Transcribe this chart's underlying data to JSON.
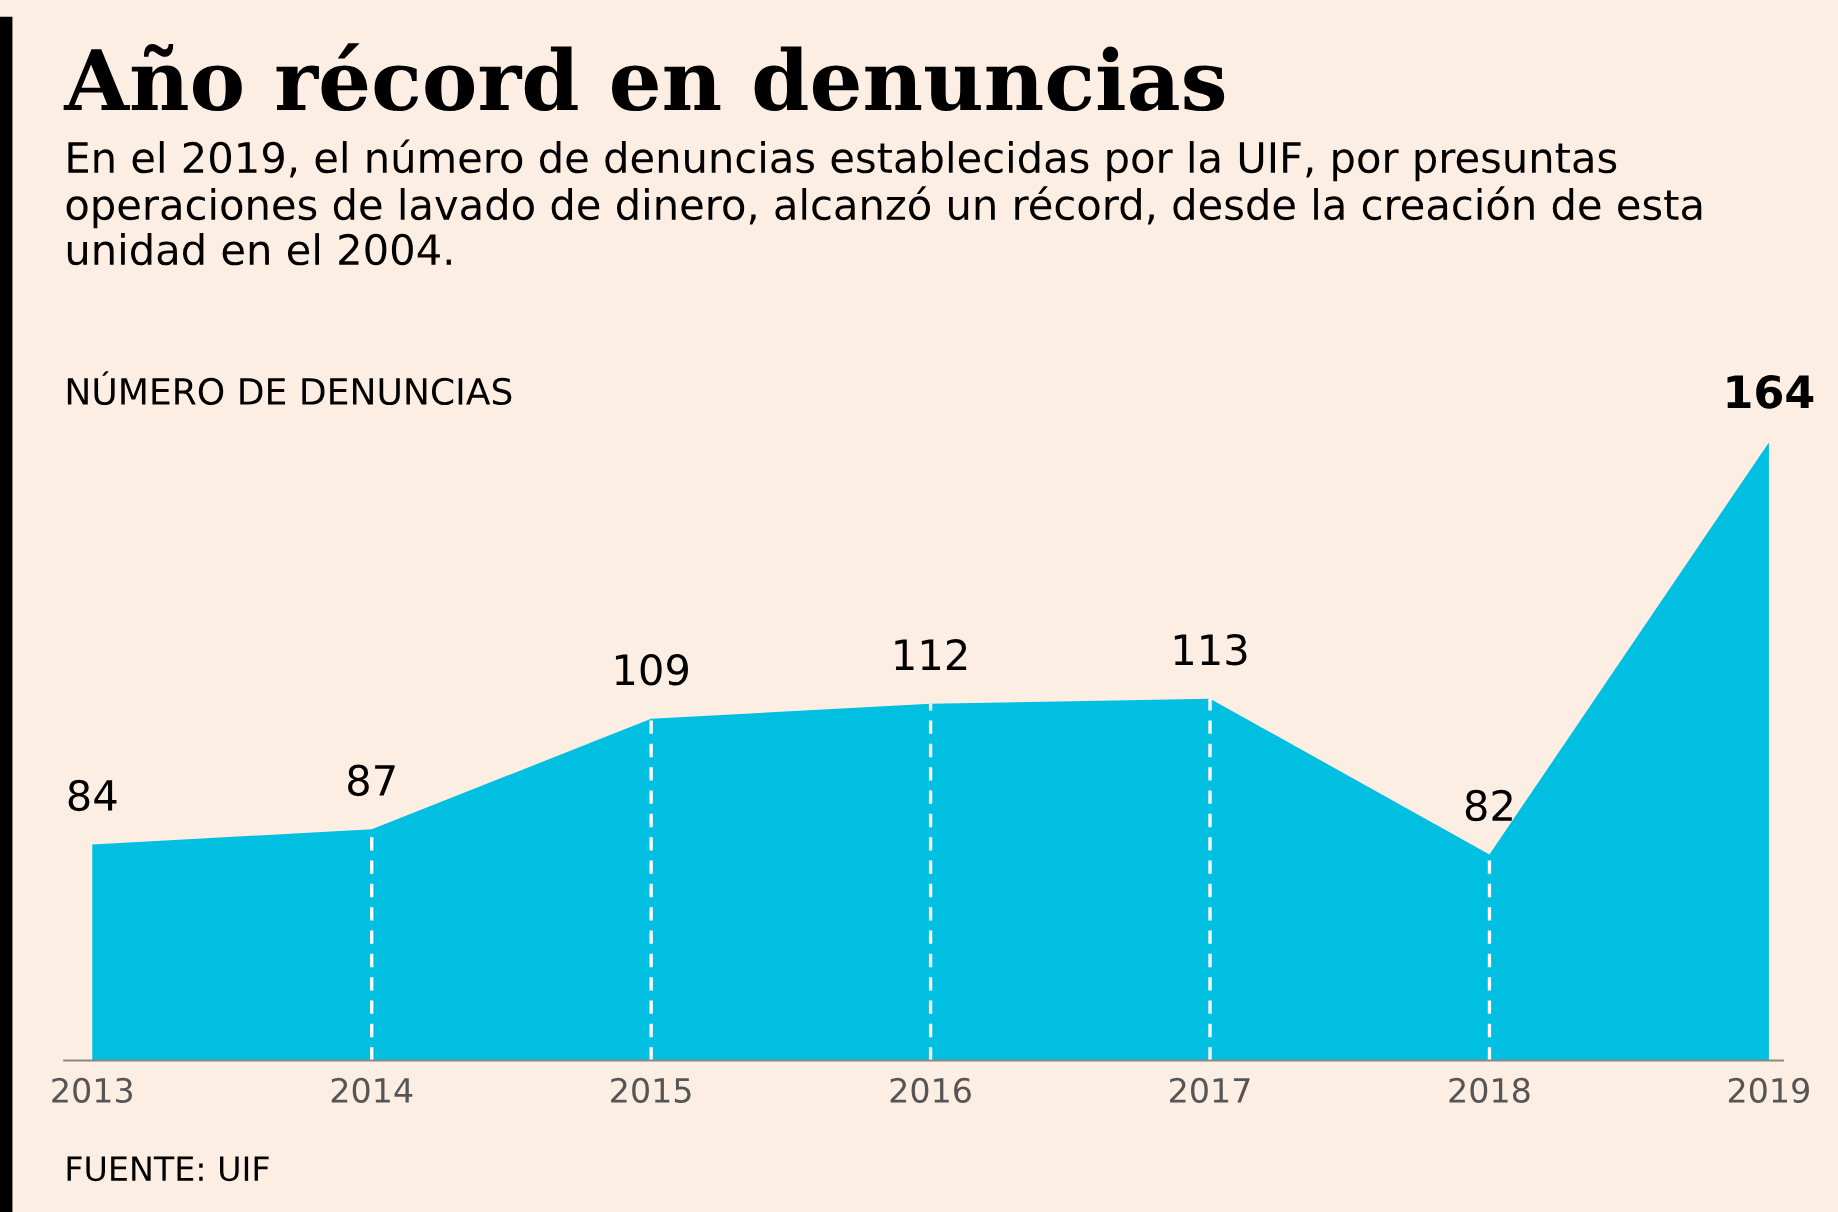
{
  "chart_data": {
    "type": "area",
    "title": "Año récord en denuncias",
    "subtitle": "En el 2019, el número de denuncias establecidas por la UIF, por presuntas operaciones de lavado de dinero, alcanzó un récord, desde la creación de esta unidad en el 2004.",
    "ylabel": "NÚMERO DE DENUNCIAS",
    "annotations": [
      "FUENTE: UIF"
    ],
    "categories": [
      "2013",
      "2014",
      "2015",
      "2016",
      "2017",
      "2018",
      "2019"
    ],
    "series": [
      {
        "color": "#00bfe0",
        "values": [
          84,
          87,
          109,
          112,
          113,
          82,
          164
        ]
      }
    ],
    "data_labels": true,
    "grid": false,
    "legend": false
  }
}
